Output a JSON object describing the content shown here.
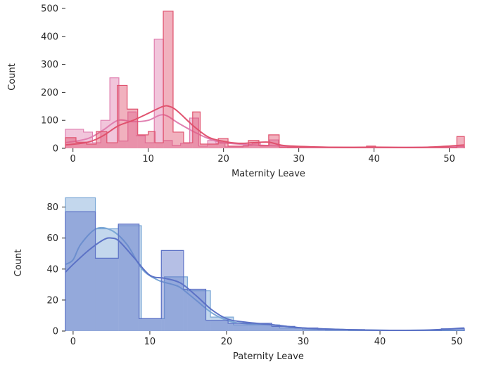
{
  "chart_data": [
    {
      "type": "histogram",
      "xlabel": "Maternity Leave",
      "ylabel": "Count",
      "xlim": [
        -1,
        52
      ],
      "ylim": [
        0,
        510
      ],
      "xticks": [
        0,
        10,
        20,
        30,
        40,
        50
      ],
      "yticks": [
        0,
        100,
        200,
        300,
        400,
        500
      ],
      "grid": false,
      "colors": {
        "series_a": "#e07fb0",
        "series_b": "#e0526e"
      },
      "series": [
        {
          "bins": [
            [
              -1,
              0.2,
              68
            ],
            [
              0.2,
              1.4,
              68
            ],
            [
              1.4,
              2.6,
              58
            ],
            [
              2.6,
              3.7,
              20
            ],
            [
              3.7,
              4.9,
              100
            ],
            [
              4.9,
              6.1,
              252
            ],
            [
              6.1,
              7.3,
              26
            ],
            [
              7.3,
              8.4,
              130
            ],
            [
              8.4,
              9.6,
              45
            ],
            [
              9.6,
              10.8,
              20
            ],
            [
              10.8,
              12,
              390
            ],
            [
              12,
              13.2,
              28
            ],
            [
              13.2,
              14.3,
              10
            ],
            [
              14.3,
              15.5,
              18
            ],
            [
              15.5,
              16.7,
              108
            ],
            [
              16.7,
              17.9,
              8
            ],
            [
              17.9,
              19,
              28
            ],
            [
              19,
              20.2,
              18
            ],
            [
              20.2,
              21.4,
              5
            ],
            [
              21.4,
              22.6,
              5
            ],
            [
              22.6,
              23.8,
              10
            ],
            [
              23.8,
              24.9,
              18
            ],
            [
              24.9,
              26.1,
              8
            ],
            [
              26.1,
              27.3,
              30
            ],
            [
              27.3,
              28.5,
              8
            ],
            [
              28.5,
              29.6,
              2
            ],
            [
              29.6,
              39,
              2
            ],
            [
              39,
              40.2,
              2
            ],
            [
              40.2,
              51,
              2
            ],
            [
              51,
              52,
              6
            ]
          ],
          "kde": [
            [
              -1,
              20
            ],
            [
              2,
              35
            ],
            [
              4,
              65
            ],
            [
              6,
              100
            ],
            [
              8,
              95
            ],
            [
              10,
              100
            ],
            [
              12,
              120
            ],
            [
              14,
              90
            ],
            [
              16,
              60
            ],
            [
              18,
              35
            ],
            [
              20,
              20
            ],
            [
              24,
              12
            ],
            [
              28,
              8
            ],
            [
              32,
              4
            ],
            [
              40,
              3
            ],
            [
              48,
              4
            ],
            [
              52,
              6
            ]
          ]
        },
        {
          "bins": [
            [
              -1,
              0.4,
              38
            ],
            [
              0.4,
              1.8,
              22
            ],
            [
              1.8,
              3.1,
              15
            ],
            [
              3.1,
              4.5,
              60
            ],
            [
              4.5,
              5.9,
              20
            ],
            [
              5.9,
              7.2,
              225
            ],
            [
              7.2,
              8.6,
              140
            ],
            [
              8.6,
              10,
              48
            ],
            [
              10,
              10.9,
              60
            ],
            [
              10.9,
              12,
              20
            ],
            [
              12,
              13.3,
              490
            ],
            [
              13.3,
              14.7,
              58
            ],
            [
              14.7,
              15.9,
              20
            ],
            [
              15.9,
              16.9,
              130
            ],
            [
              16.9,
              18,
              15
            ],
            [
              18,
              19.3,
              15
            ],
            [
              19.3,
              20.6,
              35
            ],
            [
              20.6,
              23.3,
              8
            ],
            [
              23.3,
              24.7,
              28
            ],
            [
              24.7,
              26,
              10
            ],
            [
              26,
              27.4,
              48
            ],
            [
              27.4,
              39,
              4
            ],
            [
              39,
              40.2,
              8
            ],
            [
              40.2,
              51,
              3
            ],
            [
              51,
              52,
              42
            ]
          ],
          "kde": [
            [
              -1,
              12
            ],
            [
              2,
              22
            ],
            [
              4,
              45
            ],
            [
              6,
              80
            ],
            [
              8,
              100
            ],
            [
              10,
              125
            ],
            [
              12,
              150
            ],
            [
              13,
              148
            ],
            [
              14,
              130
            ],
            [
              16,
              80
            ],
            [
              18,
              40
            ],
            [
              20,
              25
            ],
            [
              22,
              18
            ],
            [
              24,
              20
            ],
            [
              26,
              22
            ],
            [
              28,
              10
            ],
            [
              32,
              5
            ],
            [
              36,
              3
            ],
            [
              40,
              4
            ],
            [
              46,
              3
            ],
            [
              50,
              8
            ],
            [
              52,
              12
            ]
          ]
        }
      ]
    },
    {
      "type": "histogram",
      "xlabel": "Paternity Leave",
      "ylabel": "Count",
      "xlim": [
        -1,
        51
      ],
      "ylim": [
        0,
        88
      ],
      "xticks": [
        0,
        10,
        20,
        30,
        40,
        50
      ],
      "yticks": [
        0,
        20,
        40,
        60,
        80
      ],
      "grid": false,
      "colors": {
        "series_a": "#7aa7d6",
        "series_b": "#5c72c6"
      },
      "series": [
        {
          "bins": [
            [
              -1,
              2.9,
              86
            ],
            [
              2.9,
              5.9,
              66
            ],
            [
              5.9,
              8.9,
              68
            ],
            [
              8.9,
              11.9,
              8
            ],
            [
              11.9,
              14.9,
              35
            ],
            [
              14.9,
              17.9,
              26
            ],
            [
              17.9,
              20.9,
              9
            ],
            [
              20.9,
              23.9,
              4
            ],
            [
              23.9,
              26.9,
              4
            ],
            [
              26.9,
              29.9,
              2
            ],
            [
              29.9,
              32.9,
              1
            ],
            [
              32.9,
              35.9,
              0.6
            ],
            [
              35.9,
              50.9,
              0.4
            ]
          ],
          "kde": [
            [
              -1,
              43
            ],
            [
              0,
              46
            ],
            [
              1,
              56
            ],
            [
              3,
              66
            ],
            [
              5,
              65
            ],
            [
              7,
              56
            ],
            [
              9,
              40
            ],
            [
              11,
              33
            ],
            [
              13,
              30
            ],
            [
              14,
              28
            ],
            [
              16,
              20
            ],
            [
              18,
              12
            ],
            [
              20,
              7
            ],
            [
              22,
              5
            ],
            [
              26,
              4
            ],
            [
              30,
              2
            ],
            [
              35,
              1
            ],
            [
              40,
              0.5
            ],
            [
              45,
              0.5
            ],
            [
              51,
              0.5
            ]
          ]
        },
        {
          "bins": [
            [
              -1,
              2.9,
              77
            ],
            [
              2.9,
              5.9,
              47
            ],
            [
              5.9,
              8.6,
              69
            ],
            [
              8.6,
              11.5,
              8
            ],
            [
              11.5,
              14.4,
              52
            ],
            [
              14.4,
              17.3,
              27
            ],
            [
              17.3,
              20.2,
              7
            ],
            [
              20.2,
              22.9,
              5
            ],
            [
              22.9,
              25.9,
              5
            ],
            [
              25.9,
              28.9,
              3
            ],
            [
              28.9,
              31.9,
              2
            ],
            [
              31.9,
              34.9,
              1
            ],
            [
              34.9,
              38,
              1
            ],
            [
              38,
              48,
              0.5
            ],
            [
              48,
              51,
              1.5
            ]
          ],
          "kde": [
            [
              -1,
              38
            ],
            [
              0,
              43
            ],
            [
              2,
              52
            ],
            [
              4,
              59
            ],
            [
              5,
              60
            ],
            [
              6,
              58
            ],
            [
              8,
              47
            ],
            [
              10,
              36
            ],
            [
              12,
              34
            ],
            [
              14,
              31
            ],
            [
              16,
              23
            ],
            [
              18,
              14
            ],
            [
              20,
              8
            ],
            [
              22,
              6
            ],
            [
              26,
              4
            ],
            [
              30,
              2
            ],
            [
              35,
              1
            ],
            [
              40,
              0.5
            ],
            [
              45,
              0.5
            ],
            [
              48,
              1
            ],
            [
              51,
              2
            ]
          ]
        }
      ]
    }
  ]
}
